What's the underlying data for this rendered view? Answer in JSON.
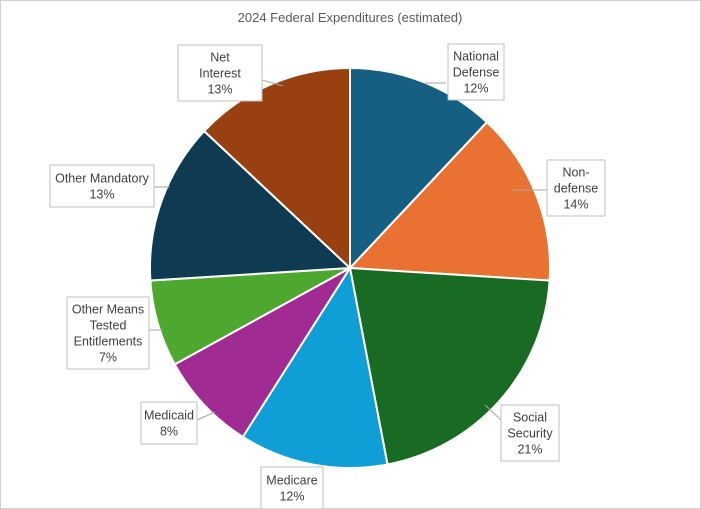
{
  "chart_data": {
    "type": "pie",
    "title": "2024 Federal Expenditures (estimated)",
    "start_angle_deg": 0,
    "slices": [
      {
        "name": "National Defense",
        "value": 12,
        "label_lines": [
          "National",
          "Defense",
          "12%"
        ],
        "color": "#156082"
      },
      {
        "name": "Non-defense",
        "value": 14,
        "label_lines": [
          "Non-",
          "defense",
          "14%"
        ],
        "color": "#E97132"
      },
      {
        "name": "Social Security",
        "value": 21,
        "label_lines": [
          "Social",
          "Security",
          "21%"
        ],
        "color": "#196B24"
      },
      {
        "name": "Medicare",
        "value": 12,
        "label_lines": [
          "Medicare",
          "12%"
        ],
        "color": "#0F9ED5"
      },
      {
        "name": "Medicaid",
        "value": 8,
        "label_lines": [
          "Medicaid",
          "8%"
        ],
        "color": "#A02B93"
      },
      {
        "name": "Other Means Tested Entitlements",
        "value": 7,
        "label_lines": [
          "Other Means",
          "Tested",
          "Entitlements",
          "7%"
        ],
        "color": "#4EA72E"
      },
      {
        "name": "Other Mandatory",
        "value": 13,
        "label_lines": [
          "Other Mandatory",
          "13%"
        ],
        "color": "#0E3A52"
      },
      {
        "name": "Net Interest",
        "value": 13,
        "label_lines": [
          "Net",
          "Interest",
          "13%"
        ],
        "color": "#984010"
      }
    ]
  }
}
